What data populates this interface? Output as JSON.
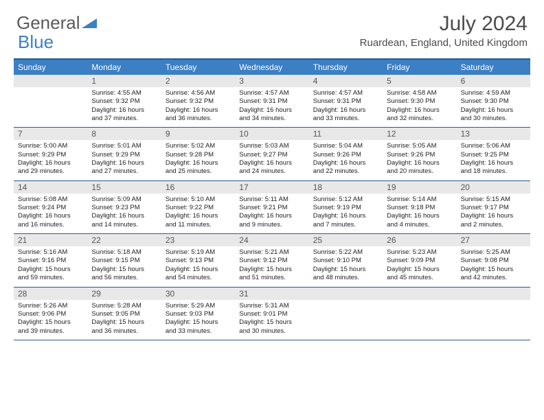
{
  "brand": {
    "part1": "General",
    "part2": "Blue"
  },
  "title": "July 2024",
  "location": "Ruardean, England, United Kingdom",
  "colors": {
    "header_bg": "#3b7fc4",
    "border": "#2a5a8a",
    "numrow_bg": "#e8e8e8",
    "text": "#222222"
  },
  "day_names": [
    "Sunday",
    "Monday",
    "Tuesday",
    "Wednesday",
    "Thursday",
    "Friday",
    "Saturday"
  ],
  "weeks": [
    [
      {
        "num": "",
        "lines": []
      },
      {
        "num": "1",
        "lines": [
          "Sunrise: 4:55 AM",
          "Sunset: 9:32 PM",
          "Daylight: 16 hours",
          "and 37 minutes."
        ]
      },
      {
        "num": "2",
        "lines": [
          "Sunrise: 4:56 AM",
          "Sunset: 9:32 PM",
          "Daylight: 16 hours",
          "and 36 minutes."
        ]
      },
      {
        "num": "3",
        "lines": [
          "Sunrise: 4:57 AM",
          "Sunset: 9:31 PM",
          "Daylight: 16 hours",
          "and 34 minutes."
        ]
      },
      {
        "num": "4",
        "lines": [
          "Sunrise: 4:57 AM",
          "Sunset: 9:31 PM",
          "Daylight: 16 hours",
          "and 33 minutes."
        ]
      },
      {
        "num": "5",
        "lines": [
          "Sunrise: 4:58 AM",
          "Sunset: 9:30 PM",
          "Daylight: 16 hours",
          "and 32 minutes."
        ]
      },
      {
        "num": "6",
        "lines": [
          "Sunrise: 4:59 AM",
          "Sunset: 9:30 PM",
          "Daylight: 16 hours",
          "and 30 minutes."
        ]
      }
    ],
    [
      {
        "num": "7",
        "lines": [
          "Sunrise: 5:00 AM",
          "Sunset: 9:29 PM",
          "Daylight: 16 hours",
          "and 29 minutes."
        ]
      },
      {
        "num": "8",
        "lines": [
          "Sunrise: 5:01 AM",
          "Sunset: 9:29 PM",
          "Daylight: 16 hours",
          "and 27 minutes."
        ]
      },
      {
        "num": "9",
        "lines": [
          "Sunrise: 5:02 AM",
          "Sunset: 9:28 PM",
          "Daylight: 16 hours",
          "and 25 minutes."
        ]
      },
      {
        "num": "10",
        "lines": [
          "Sunrise: 5:03 AM",
          "Sunset: 9:27 PM",
          "Daylight: 16 hours",
          "and 24 minutes."
        ]
      },
      {
        "num": "11",
        "lines": [
          "Sunrise: 5:04 AM",
          "Sunset: 9:26 PM",
          "Daylight: 16 hours",
          "and 22 minutes."
        ]
      },
      {
        "num": "12",
        "lines": [
          "Sunrise: 5:05 AM",
          "Sunset: 9:26 PM",
          "Daylight: 16 hours",
          "and 20 minutes."
        ]
      },
      {
        "num": "13",
        "lines": [
          "Sunrise: 5:06 AM",
          "Sunset: 9:25 PM",
          "Daylight: 16 hours",
          "and 18 minutes."
        ]
      }
    ],
    [
      {
        "num": "14",
        "lines": [
          "Sunrise: 5:08 AM",
          "Sunset: 9:24 PM",
          "Daylight: 16 hours",
          "and 16 minutes."
        ]
      },
      {
        "num": "15",
        "lines": [
          "Sunrise: 5:09 AM",
          "Sunset: 9:23 PM",
          "Daylight: 16 hours",
          "and 14 minutes."
        ]
      },
      {
        "num": "16",
        "lines": [
          "Sunrise: 5:10 AM",
          "Sunset: 9:22 PM",
          "Daylight: 16 hours",
          "and 11 minutes."
        ]
      },
      {
        "num": "17",
        "lines": [
          "Sunrise: 5:11 AM",
          "Sunset: 9:21 PM",
          "Daylight: 16 hours",
          "and 9 minutes."
        ]
      },
      {
        "num": "18",
        "lines": [
          "Sunrise: 5:12 AM",
          "Sunset: 9:19 PM",
          "Daylight: 16 hours",
          "and 7 minutes."
        ]
      },
      {
        "num": "19",
        "lines": [
          "Sunrise: 5:14 AM",
          "Sunset: 9:18 PM",
          "Daylight: 16 hours",
          "and 4 minutes."
        ]
      },
      {
        "num": "20",
        "lines": [
          "Sunrise: 5:15 AM",
          "Sunset: 9:17 PM",
          "Daylight: 16 hours",
          "and 2 minutes."
        ]
      }
    ],
    [
      {
        "num": "21",
        "lines": [
          "Sunrise: 5:16 AM",
          "Sunset: 9:16 PM",
          "Daylight: 15 hours",
          "and 59 minutes."
        ]
      },
      {
        "num": "22",
        "lines": [
          "Sunrise: 5:18 AM",
          "Sunset: 9:15 PM",
          "Daylight: 15 hours",
          "and 56 minutes."
        ]
      },
      {
        "num": "23",
        "lines": [
          "Sunrise: 5:19 AM",
          "Sunset: 9:13 PM",
          "Daylight: 15 hours",
          "and 54 minutes."
        ]
      },
      {
        "num": "24",
        "lines": [
          "Sunrise: 5:21 AM",
          "Sunset: 9:12 PM",
          "Daylight: 15 hours",
          "and 51 minutes."
        ]
      },
      {
        "num": "25",
        "lines": [
          "Sunrise: 5:22 AM",
          "Sunset: 9:10 PM",
          "Daylight: 15 hours",
          "and 48 minutes."
        ]
      },
      {
        "num": "26",
        "lines": [
          "Sunrise: 5:23 AM",
          "Sunset: 9:09 PM",
          "Daylight: 15 hours",
          "and 45 minutes."
        ]
      },
      {
        "num": "27",
        "lines": [
          "Sunrise: 5:25 AM",
          "Sunset: 9:08 PM",
          "Daylight: 15 hours",
          "and 42 minutes."
        ]
      }
    ],
    [
      {
        "num": "28",
        "lines": [
          "Sunrise: 5:26 AM",
          "Sunset: 9:06 PM",
          "Daylight: 15 hours",
          "and 39 minutes."
        ]
      },
      {
        "num": "29",
        "lines": [
          "Sunrise: 5:28 AM",
          "Sunset: 9:05 PM",
          "Daylight: 15 hours",
          "and 36 minutes."
        ]
      },
      {
        "num": "30",
        "lines": [
          "Sunrise: 5:29 AM",
          "Sunset: 9:03 PM",
          "Daylight: 15 hours",
          "and 33 minutes."
        ]
      },
      {
        "num": "31",
        "lines": [
          "Sunrise: 5:31 AM",
          "Sunset: 9:01 PM",
          "Daylight: 15 hours",
          "and 30 minutes."
        ]
      },
      {
        "num": "",
        "lines": []
      },
      {
        "num": "",
        "lines": []
      },
      {
        "num": "",
        "lines": []
      }
    ]
  ]
}
